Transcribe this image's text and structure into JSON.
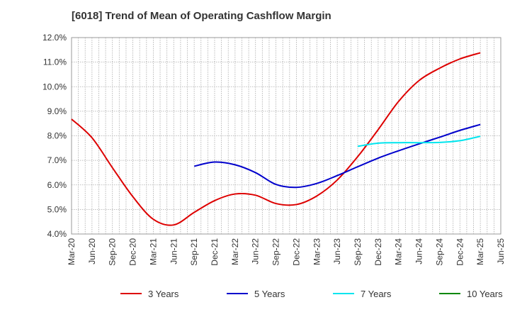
{
  "title": "[6018]  Trend of Mean of Operating Cashflow Margin",
  "chart_data": {
    "type": "line",
    "title": "[6018]  Trend of Mean of Operating Cashflow Margin",
    "xlabel": "",
    "ylabel": "",
    "ylim": [
      4.0,
      12.0
    ],
    "yticks": [
      4.0,
      5.0,
      6.0,
      7.0,
      8.0,
      9.0,
      10.0,
      11.0,
      12.0
    ],
    "ytick_labels": [
      "4.0%",
      "5.0%",
      "6.0%",
      "7.0%",
      "8.0%",
      "9.0%",
      "10.0%",
      "11.0%",
      "12.0%"
    ],
    "x_categories": [
      "Mar-20",
      "Jun-20",
      "Sep-20",
      "Dec-20",
      "Mar-21",
      "Jun-21",
      "Sep-21",
      "Dec-21",
      "Mar-22",
      "Jun-22",
      "Sep-22",
      "Dec-22",
      "Mar-23",
      "Jun-23",
      "Sep-23",
      "Dec-23",
      "Mar-24",
      "Jun-24",
      "Sep-24",
      "Dec-24",
      "Mar-25",
      "Jun-25"
    ],
    "grid": true,
    "legend_position": "bottom",
    "series": [
      {
        "name": "3 Years",
        "color": "#dd0000",
        "points": [
          [
            0,
            8.68
          ],
          [
            1,
            7.92
          ],
          [
            2,
            6.7
          ],
          [
            3,
            5.52
          ],
          [
            4,
            4.6
          ],
          [
            5,
            4.37
          ],
          [
            6,
            4.88
          ],
          [
            7,
            5.36
          ],
          [
            8,
            5.63
          ],
          [
            9,
            5.58
          ],
          [
            10,
            5.24
          ],
          [
            11,
            5.2
          ],
          [
            12,
            5.55
          ],
          [
            13,
            6.2
          ],
          [
            14,
            7.15
          ],
          [
            15,
            8.25
          ],
          [
            16,
            9.4
          ],
          [
            17,
            10.25
          ],
          [
            18,
            10.75
          ],
          [
            19,
            11.13
          ],
          [
            20,
            11.38
          ]
        ]
      },
      {
        "name": "5 Years",
        "color": "#0000cc",
        "points": [
          [
            6,
            6.76
          ],
          [
            7,
            6.93
          ],
          [
            8,
            6.82
          ],
          [
            9,
            6.5
          ],
          [
            10,
            6.02
          ],
          [
            11,
            5.9
          ],
          [
            12,
            6.06
          ],
          [
            13,
            6.38
          ],
          [
            14,
            6.74
          ],
          [
            15,
            7.09
          ],
          [
            16,
            7.39
          ],
          [
            17,
            7.67
          ],
          [
            18,
            7.94
          ],
          [
            19,
            8.22
          ],
          [
            20,
            8.46
          ]
        ]
      },
      {
        "name": "7 Years",
        "color": "#00e5ee",
        "points": [
          [
            14,
            7.57
          ],
          [
            15,
            7.7
          ],
          [
            16,
            7.72
          ],
          [
            17,
            7.72
          ],
          [
            18,
            7.73
          ],
          [
            19,
            7.8
          ],
          [
            20,
            7.98
          ]
        ]
      },
      {
        "name": "10 Years",
        "color": "#008800",
        "points": []
      }
    ]
  }
}
